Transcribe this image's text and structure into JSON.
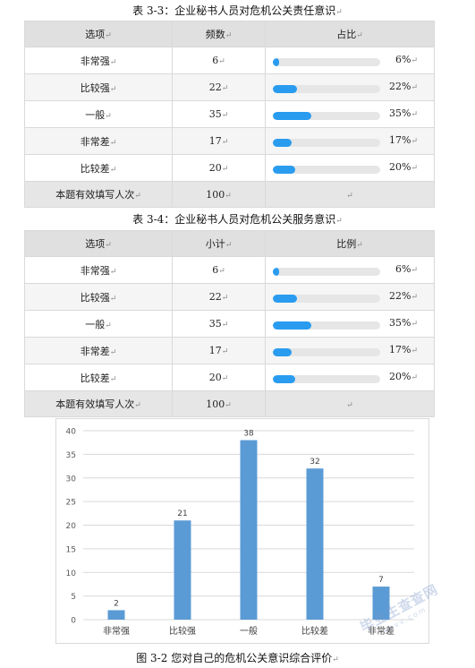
{
  "table1": {
    "caption": "表 3-3：企业秘书人员对危机公关责任意识",
    "headers": [
      "选项",
      "频数",
      "占比"
    ],
    "rows": [
      {
        "label": "非常强",
        "count": "6",
        "pct": "6%",
        "value": 6
      },
      {
        "label": "比较强",
        "count": "22",
        "pct": "22%",
        "value": 22
      },
      {
        "label": "一般",
        "count": "35",
        "pct": "35%",
        "value": 35
      },
      {
        "label": "非常差",
        "count": "17",
        "pct": "17%",
        "value": 17
      },
      {
        "label": "比较差",
        "count": "20",
        "pct": "20%",
        "value": 20
      }
    ],
    "footer_label": "本题有效填写人次",
    "footer_count": "100"
  },
  "table2": {
    "caption": "表 3-4：企业秘书人员对危机公关服务意识",
    "headers": [
      "选项",
      "小计",
      "比例"
    ],
    "rows": [
      {
        "label": "非常强",
        "count": "6",
        "pct": "6%",
        "value": 6
      },
      {
        "label": "比较强",
        "count": "22",
        "pct": "22%",
        "value": 22
      },
      {
        "label": "一般",
        "count": "35",
        "pct": "35%",
        "value": 35
      },
      {
        "label": "非常差",
        "count": "17",
        "pct": "17%",
        "value": 17
      },
      {
        "label": "比较差",
        "count": "20",
        "pct": "20%",
        "value": 20
      }
    ],
    "footer_label": "本题有效填写人次",
    "footer_count": "100"
  },
  "chart_data": {
    "type": "bar",
    "categories": [
      "非常强",
      "比较强",
      "一般",
      "比较差",
      "非常差"
    ],
    "values": [
      2,
      21,
      38,
      32,
      7
    ],
    "ylim": [
      0,
      40
    ],
    "yticks": [
      0,
      5,
      10,
      15,
      20,
      25,
      30,
      35,
      40
    ],
    "grid": true,
    "bar_color": "#5b9bd5",
    "title": "",
    "xlabel": "",
    "ylabel": ""
  },
  "figure_caption": "图 3-2  您对自己的危机公关意识综合评价",
  "watermark": {
    "line1": "毕业生查查网",
    "line2": "sbvv.com"
  },
  "colors": {
    "bar_fill": "#2a9cf0",
    "bar_track": "#e6e6e6",
    "header_bg": "#e0e0e0"
  }
}
